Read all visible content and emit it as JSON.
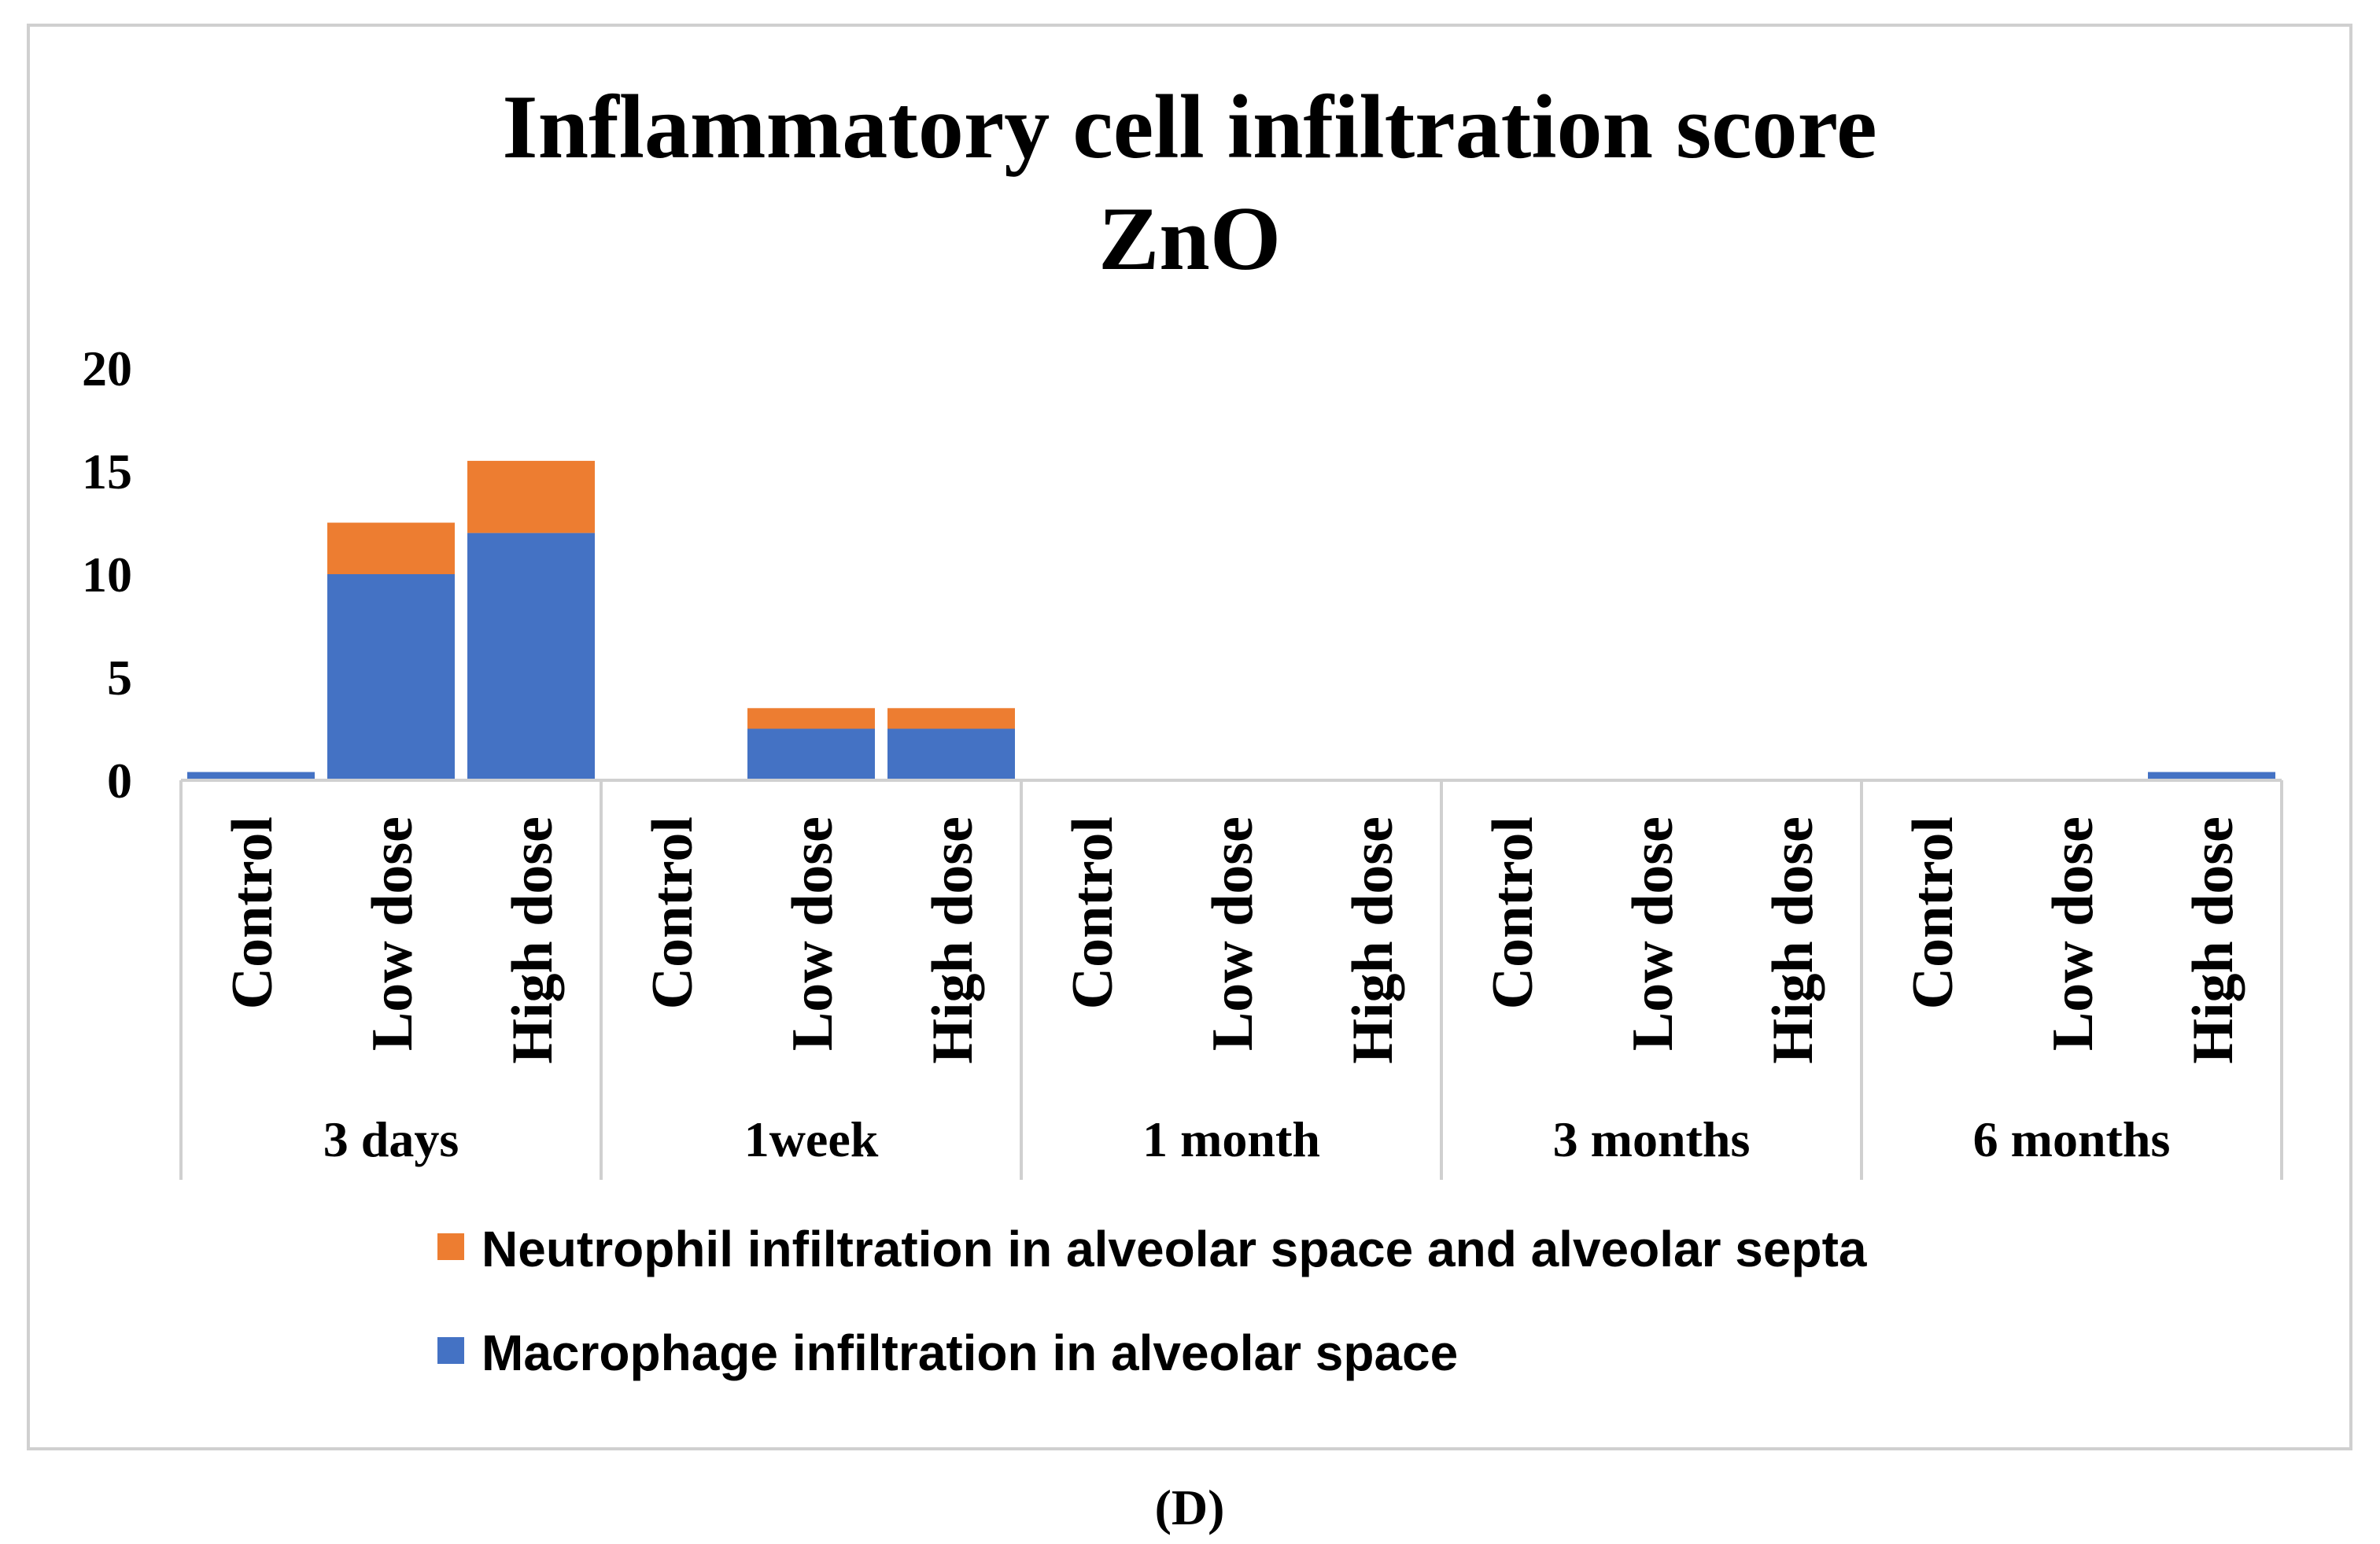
{
  "chart_data": {
    "type": "bar",
    "stacked": true,
    "title": "Inflammatory cell infiltration score",
    "subtitle": "ZnO",
    "ylim": [
      0,
      20
    ],
    "yticks": [
      0,
      5,
      10,
      15,
      20
    ],
    "grid": false,
    "legend_position": "bottom",
    "groups": [
      {
        "label": "3 days",
        "categories": [
          "Control",
          "Low dose",
          "High dose"
        ]
      },
      {
        "label": "1week",
        "categories": [
          "Control",
          "Low dose",
          "High dose"
        ]
      },
      {
        "label": "1 month",
        "categories": [
          "Control",
          "Low dose",
          "High dose"
        ]
      },
      {
        "label": "3 months",
        "categories": [
          "Control",
          "Low dose",
          "High dose"
        ]
      },
      {
        "label": "6 months",
        "categories": [
          "Control",
          "Low dose",
          "High dose"
        ]
      }
    ],
    "series": [
      {
        "name": "Macrophage infiltration in alveolar space",
        "color": "#4472C4",
        "values": [
          0.4,
          10,
          12,
          0,
          2.5,
          2.5,
          0,
          0,
          0,
          0,
          0,
          0,
          0,
          0,
          0.4
        ]
      },
      {
        "name": "Neutrophil infiltration in alveolar space and alveolar septa",
        "color": "#ED7D31",
        "values": [
          0,
          2.5,
          3.5,
          0,
          1,
          1,
          0,
          0,
          0,
          0,
          0,
          0,
          0,
          0,
          0
        ]
      }
    ],
    "legend_order": [
      "Neutrophil infiltration in alveolar space and alveolar septa",
      "Macrophage infiltration in alveolar space"
    ]
  },
  "caption": "(D)",
  "colors": {
    "axis": "#d0d0d0",
    "frame": "#d0d0d0"
  }
}
